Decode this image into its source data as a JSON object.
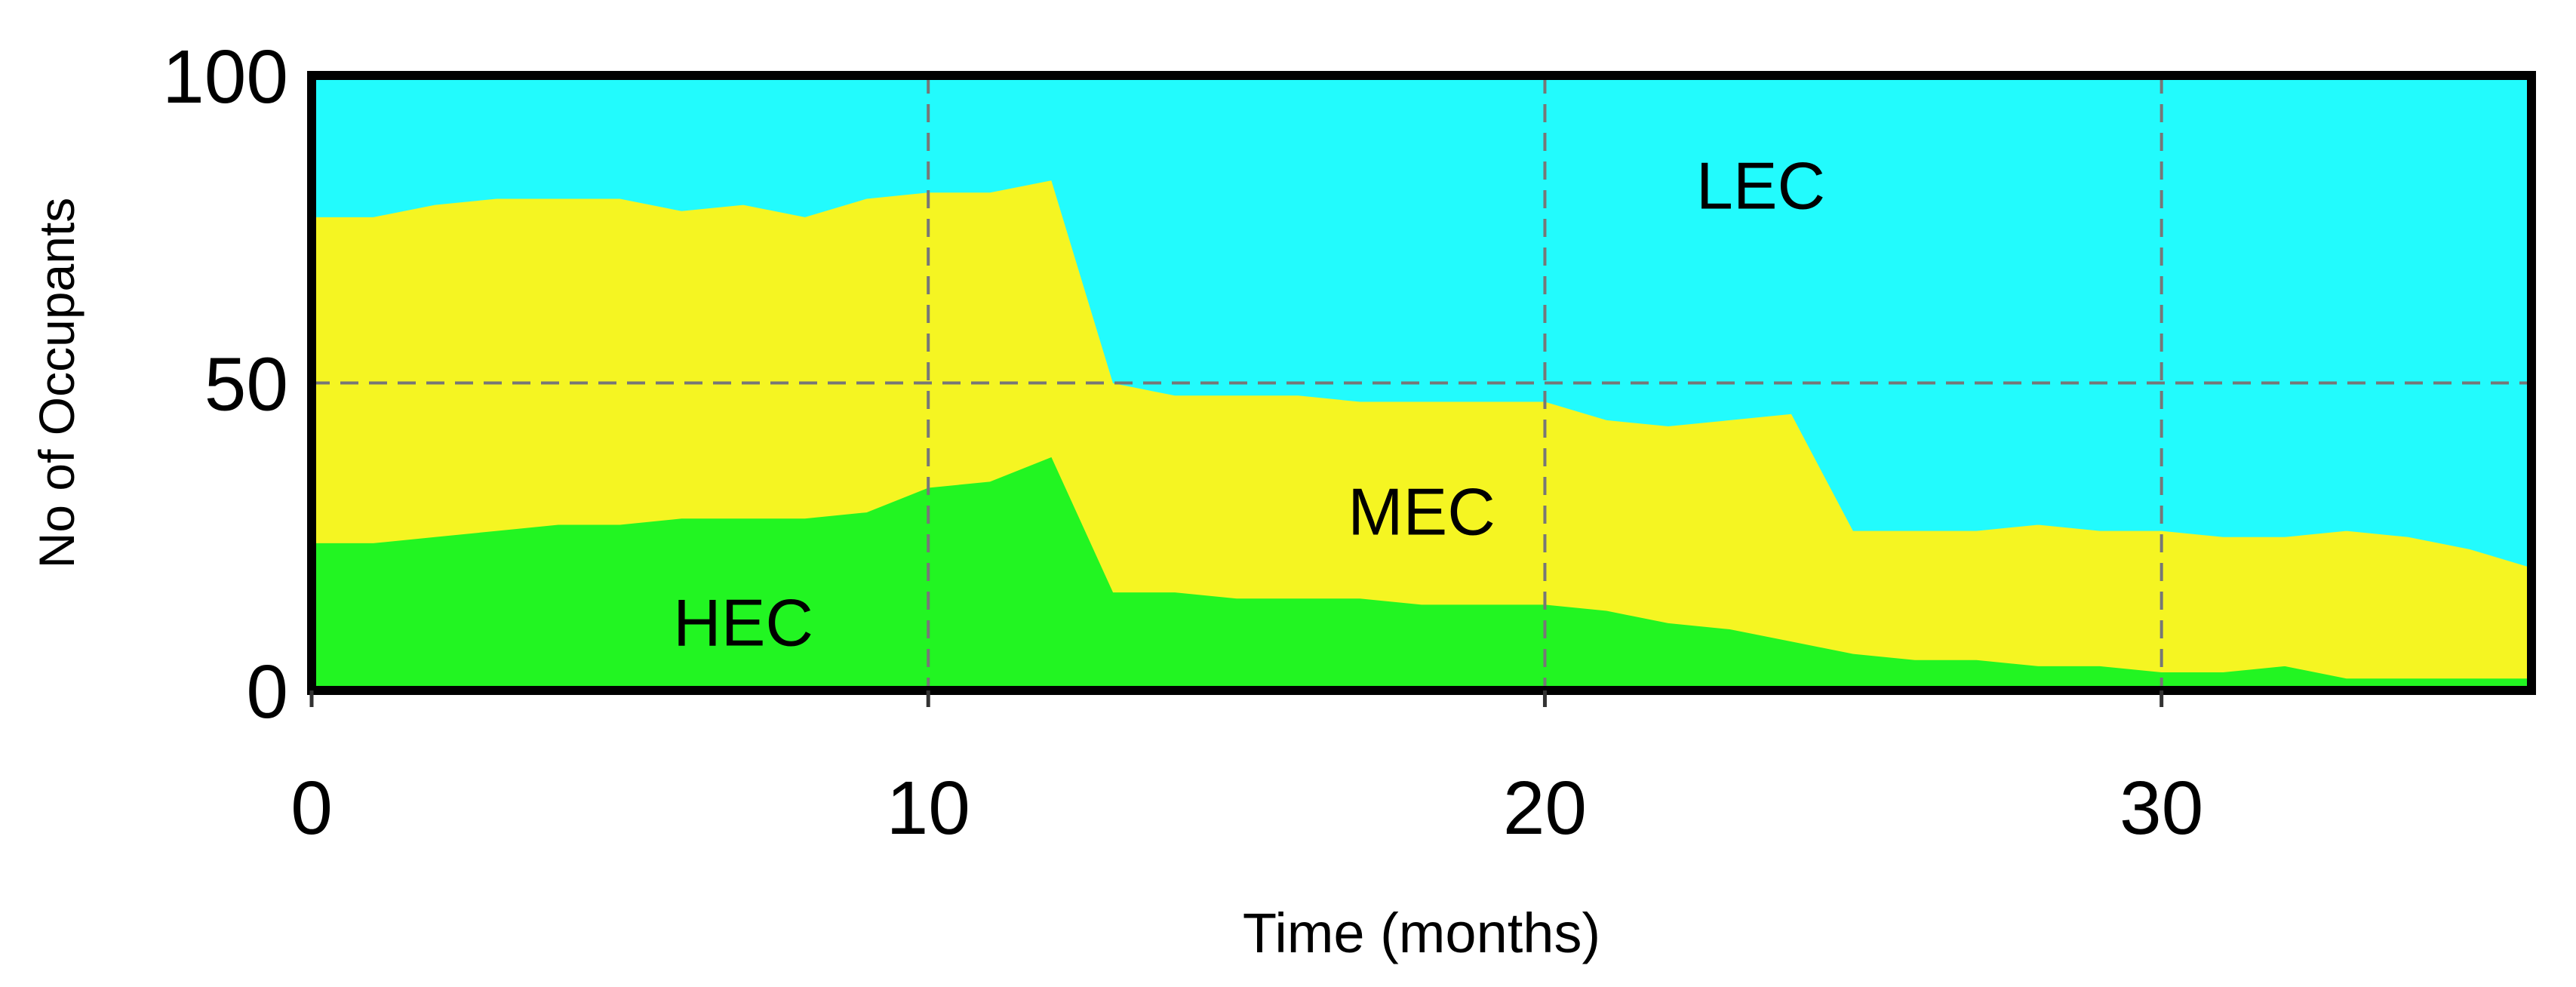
{
  "chart_data": {
    "type": "area",
    "stacked": true,
    "xlabel": "Time (months)",
    "ylabel": "No of Occupants",
    "xlim": [
      0,
      36
    ],
    "ylim": [
      0,
      100
    ],
    "xticks": [
      0,
      10,
      20,
      30
    ],
    "yticks": [
      0,
      50,
      100
    ],
    "grid": true,
    "x": [
      0,
      1,
      2,
      3,
      4,
      5,
      6,
      7,
      8,
      9,
      10,
      11,
      12,
      13,
      14,
      15,
      16,
      17,
      18,
      19,
      20,
      21,
      22,
      23,
      24,
      25,
      26,
      27,
      28,
      29,
      30,
      31,
      32,
      33,
      34,
      35,
      36
    ],
    "series": [
      {
        "name": "HEC",
        "color": "#22f522",
        "values": [
          24,
          24,
          25,
          26,
          27,
          27,
          28,
          28,
          28,
          29,
          33,
          34,
          38,
          16,
          16,
          15,
          15,
          15,
          14,
          14,
          14,
          13,
          11,
          10,
          8,
          6,
          5,
          5,
          4,
          4,
          3,
          3,
          4,
          2,
          2,
          2,
          2
        ]
      },
      {
        "name": "MEC",
        "color": "#f5f522",
        "values": [
          53,
          53,
          54,
          54,
          53,
          53,
          50,
          51,
          49,
          51,
          48,
          47,
          45,
          34,
          32,
          33,
          33,
          32,
          33,
          33,
          33,
          31,
          32,
          34,
          37,
          20,
          21,
          21,
          23,
          22,
          23,
          22,
          21,
          24,
          23,
          21,
          18
        ]
      },
      {
        "name": "LEC",
        "color": "#22fbfd",
        "values": [
          23,
          23,
          21,
          20,
          20,
          20,
          22,
          21,
          23,
          20,
          19,
          19,
          17,
          50,
          52,
          52,
          52,
          53,
          53,
          53,
          53,
          56,
          57,
          56,
          55,
          74,
          74,
          74,
          73,
          74,
          74,
          75,
          75,
          74,
          75,
          77,
          80
        ]
      }
    ],
    "annotations": [
      {
        "text": "HEC",
        "x": 7,
        "y": 11
      },
      {
        "text": "MEC",
        "x": 18,
        "y": 29
      },
      {
        "text": "LEC",
        "x": 23.5,
        "y": 82
      }
    ]
  }
}
